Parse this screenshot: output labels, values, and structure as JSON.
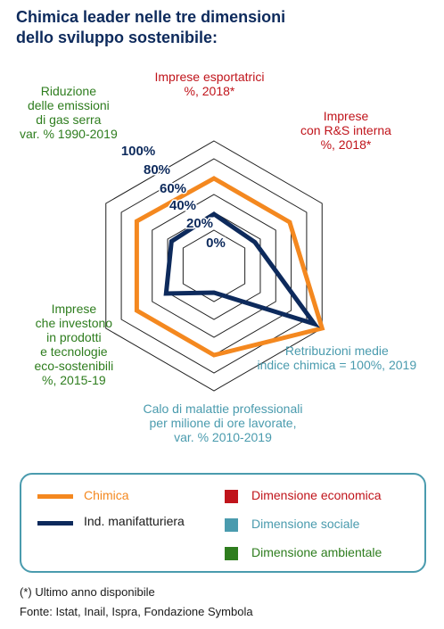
{
  "title": {
    "line1": "Chimica leader nelle tre dimensioni",
    "line2": "dello sviluppo sostenibile:"
  },
  "colors": {
    "title": "#0d2a5c",
    "grid": "#1f1f1f",
    "economica": "#c0141b",
    "sociale": "#4a9bae",
    "ambientale": "#2e7d1e",
    "chimica": "#f4881f",
    "manifatturiera": "#0d2a5c"
  },
  "chart_data": {
    "type": "radar",
    "r_min": -0.4,
    "r_max": 1.0,
    "grid_levels": [
      0,
      0.2,
      0.4,
      0.6,
      0.8,
      1.0
    ],
    "tick_labels": [
      "0%",
      "20%",
      "40%",
      "60%",
      "80%",
      "100%"
    ],
    "axes": [
      {
        "lines": [
          "Imprese esportatrici",
          "%, 2018*"
        ],
        "dimension": "economica"
      },
      {
        "lines": [
          "Imprese",
          "con R&S interna",
          "%, 2018*"
        ],
        "dimension": "economica"
      },
      {
        "lines": [
          "Retribuzioni medie",
          "indice chimica = 100%, 2019"
        ],
        "dimension": "sociale"
      },
      {
        "lines": [
          "Calo di malattie professionali",
          "per milione di ore lavorate,",
          "var. % 2010-2019"
        ],
        "dimension": "sociale"
      },
      {
        "lines": [
          "Imprese",
          "che investono",
          "in prodotti",
          "e tecnologie",
          "eco-sostenibili",
          "%, 2015-19"
        ],
        "dimension": "ambientale"
      },
      {
        "lines": [
          "Riduzione",
          "delle emissioni",
          "di gas serra",
          "var. % 1990-2019"
        ],
        "dimension": "ambientale"
      }
    ],
    "series": [
      {
        "name": "Chimica",
        "color": "#f4881f",
        "values": [
          0.58,
          0.58,
          1.0,
          0.6,
          0.6,
          0.6
        ]
      },
      {
        "name": "Ind. manifatturiera",
        "color": "#0d2a5c",
        "values": [
          0.18,
          0.13,
          0.9,
          -0.1,
          0.22,
          0.15
        ]
      }
    ]
  },
  "legend": {
    "series": [
      {
        "label": "Chimica",
        "color": "#f4881f"
      },
      {
        "label": "Ind. manifatturiera",
        "color": "#0d2a5c"
      }
    ],
    "dimensions": [
      {
        "label": "Dimensione economica",
        "color": "#c0141b"
      },
      {
        "label": "Dimensione sociale",
        "color": "#4a9bae"
      },
      {
        "label": "Dimensione ambientale",
        "color": "#2e7d1e"
      }
    ]
  },
  "footnotes": {
    "note": "(*) Ultimo anno disponibile",
    "source": "Fonte: Istat, Inail, Ispra, Fondazione Symbola"
  }
}
